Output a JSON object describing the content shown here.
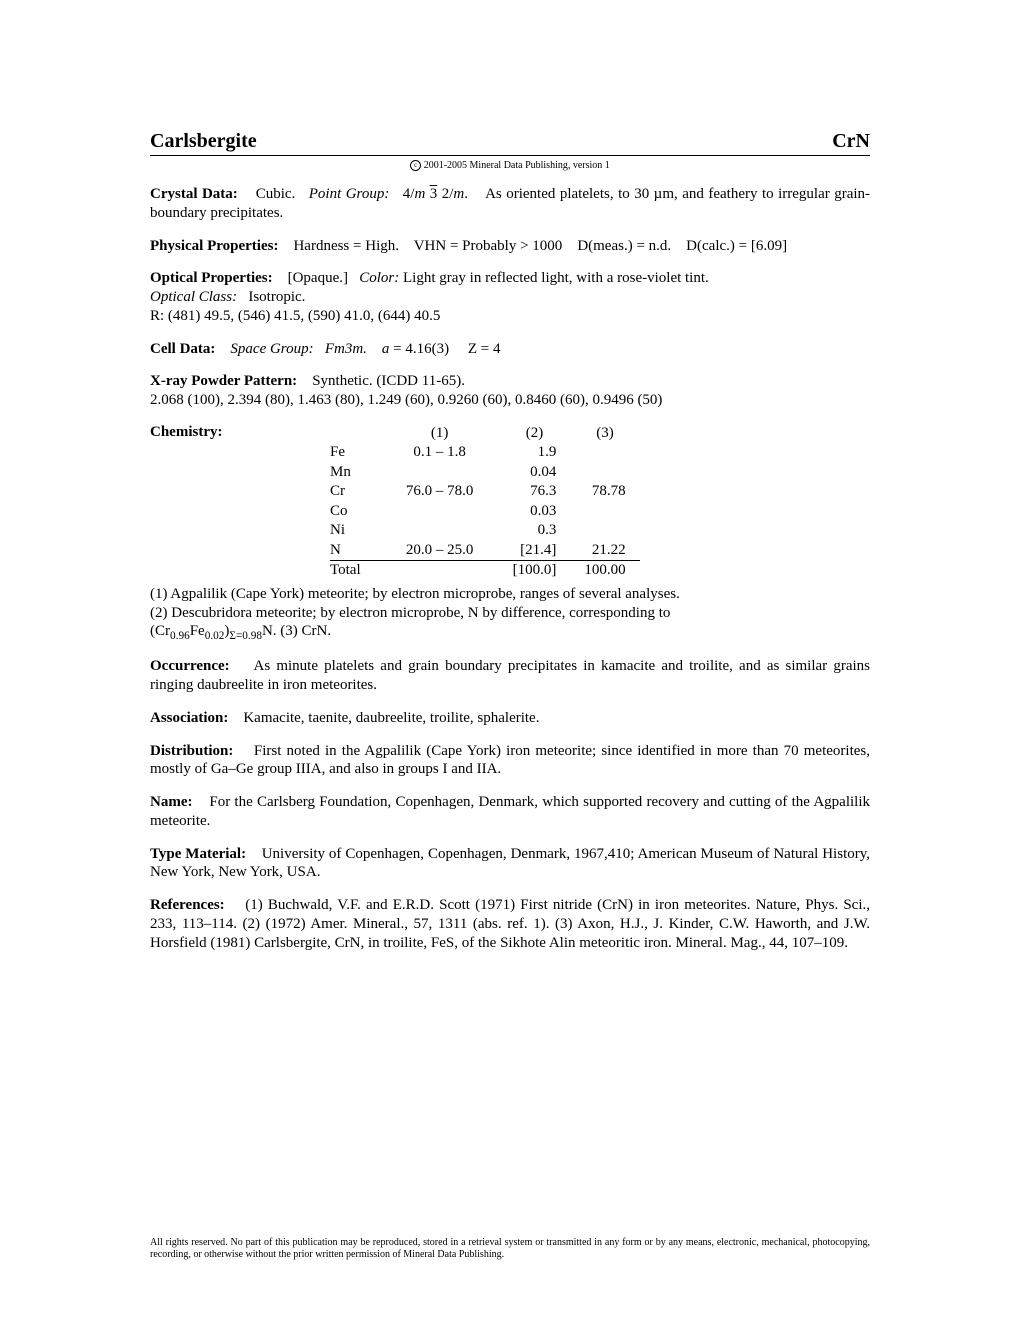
{
  "header": {
    "name": "Carlsbergite",
    "formula": "CrN"
  },
  "copyright": "2001-2005 Mineral Data Publishing, version 1",
  "crystal_data": {
    "label": "Crystal Data:",
    "system": "Cubic.",
    "point_group_label": "Point Group:",
    "point_group": "4/m 3 2/m.",
    "text": "As oriented platelets, to 30 µm, and feathery to irregular grain-boundary precipitates."
  },
  "physical": {
    "label": "Physical Properties:",
    "hardness": "Hardness = High.",
    "vhn": "VHN = Probably > 1000",
    "dmeas": "D(meas.) = n.d.",
    "dcalc": "D(calc.) = [6.09]"
  },
  "optical": {
    "label": "Optical Properties:",
    "opaque": "[Opaque.]",
    "color_label": "Color:",
    "color": "Light gray in reflected light, with a rose-violet tint.",
    "class_label": "Optical Class:",
    "class": "Isotropic.",
    "R": "R: (481) 49.5, (546) 41.5, (590) 41.0, (644) 40.5"
  },
  "cell": {
    "label": "Cell Data:",
    "sg_label": "Space Group:",
    "sg": "Fm3m.",
    "a": "a = 4.16(3)",
    "z": "Z = 4"
  },
  "xray": {
    "label": "X-ray Powder Pattern:",
    "text1": "Synthetic. (ICDD 11-65).",
    "text2": "2.068 (100), 2.394 (80), 1.463 (80), 1.249 (60), 0.9260 (60), 0.8460 (60), 0.9496 (50)"
  },
  "chemistry": {
    "label": "Chemistry:",
    "cols": [
      "(1)",
      "(2)",
      "(3)"
    ],
    "rows": [
      {
        "e": "Fe",
        "c1": "0.1 –  1.8",
        "c2": "1.9",
        "c3": ""
      },
      {
        "e": "Mn",
        "c1": "",
        "c2": "0.04",
        "c3": ""
      },
      {
        "e": "Cr",
        "c1": "76.0 – 78.0",
        "c2": "76.3",
        "c3": "78.78"
      },
      {
        "e": "Co",
        "c1": "",
        "c2": "0.03",
        "c3": ""
      },
      {
        "e": "Ni",
        "c1": "",
        "c2": "0.3",
        "c3": ""
      },
      {
        "e": "N",
        "c1": "20.0 – 25.0",
        "c2": "[21.4]",
        "c3": "21.22"
      }
    ],
    "total": {
      "e": "Total",
      "c1": "",
      "c2": "[100.0]",
      "c3": "100.00"
    },
    "note1": "(1) Agpalilik (Cape York) meteorite; by electron microprobe, ranges of several analyses.",
    "note2": "(2) Descubridora meteorite; by electron microprobe, N by difference, corresponding to",
    "note3_pre": "(Cr",
    "note3_s1": "0.96",
    "note3_m1": "Fe",
    "note3_s2": "0.02",
    "note3_m2": ")",
    "note3_s3": "Σ=0.98",
    "note3_post": "N. (3)  CrN."
  },
  "occurrence": {
    "label": "Occurrence:",
    "text": "As minute platelets and grain boundary precipitates in kamacite and troilite, and as similar grains ringing daubreelite in iron meteorites."
  },
  "association": {
    "label": "Association:",
    "text": "Kamacite, taenite, daubreelite, troilite, sphalerite."
  },
  "distribution": {
    "label": "Distribution:",
    "text": "First noted in the Agpalilik (Cape York) iron meteorite; since identified in more than 70 meteorites, mostly of Ga–Ge group IIIA, and also in groups I and IIA."
  },
  "name": {
    "label": "Name:",
    "text": "For the Carlsberg Foundation, Copenhagen, Denmark, which supported recovery and cutting of the Agpalilik meteorite."
  },
  "type": {
    "label": "Type Material:",
    "text": "University of Copenhagen, Copenhagen, Denmark, 1967,410; American Museum of Natural History, New York, New York, USA."
  },
  "references": {
    "label": "References:",
    "text": "(1) Buchwald, V.F. and E.R.D. Scott (1971) First nitride (CrN) in iron meteorites. Nature, Phys. Sci., 233, 113–114. (2) (1972) Amer. Mineral., 57, 1311 (abs. ref. 1). (3) Axon, H.J., J. Kinder, C.W. Haworth, and J.W. Horsfield (1981) Carlsbergite, CrN, in troilite, FeS, of the Sikhote Alin meteoritic iron. Mineral. Mag., 44, 107–109."
  },
  "footer": "All rights reserved. No part of this publication may be reproduced, stored in a retrieval system or transmitted in any form or by any means, electronic, mechanical, photocopying, recording, or otherwise without the prior written permission of Mineral Data Publishing."
}
